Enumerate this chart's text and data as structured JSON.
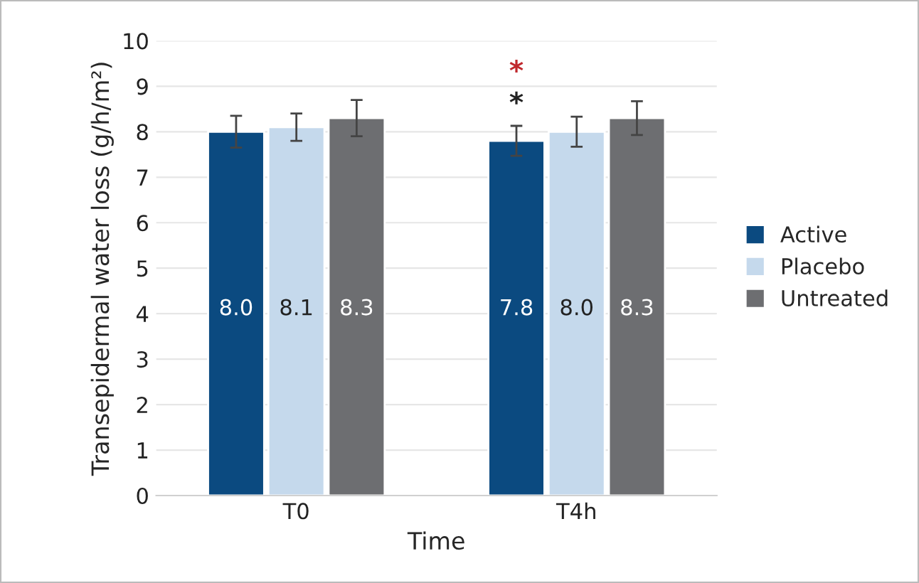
{
  "chart_data": {
    "type": "bar",
    "xlabel": "Time",
    "ylabel": "Transepidermal water loss (g/h/m²)",
    "categories": [
      "T0",
      "T4h"
    ],
    "series": [
      {
        "name": "Active",
        "color": "#0b4a80",
        "values": [
          8.0,
          7.8
        ],
        "errors": [
          0.35,
          0.33
        ],
        "value_labels": [
          "8.0",
          "7.8"
        ]
      },
      {
        "name": "Placebo",
        "color": "#c5d9ec",
        "values": [
          8.1,
          8.0
        ],
        "errors": [
          0.3,
          0.33
        ],
        "value_labels": [
          "8.1",
          "8.0"
        ]
      },
      {
        "name": "Untreated",
        "color": "#6d6e71",
        "values": [
          8.3,
          8.3
        ],
        "errors": [
          0.4,
          0.37
        ],
        "value_labels": [
          "8.3",
          "8.3"
        ]
      }
    ],
    "ylim": [
      0,
      10
    ],
    "yticks": [
      0,
      1,
      2,
      3,
      4,
      5,
      6,
      7,
      8,
      9,
      10
    ],
    "annotations": [
      "*",
      "*"
    ],
    "grid": "y",
    "legend": "right"
  }
}
